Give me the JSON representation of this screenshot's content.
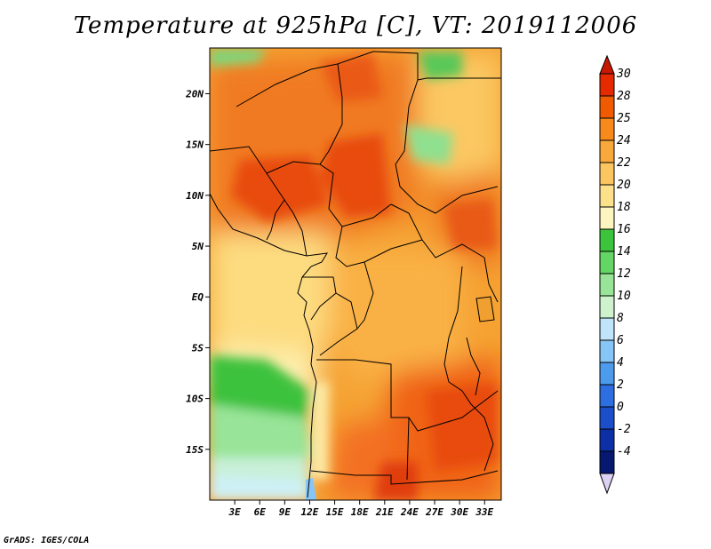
{
  "title": "Temperature at 925hPa [C], VT: 2019112006",
  "credit": "GrADS: IGES/COLA",
  "map": {
    "lon_range": [
      0,
      35
    ],
    "lat_range": [
      -20,
      24.5
    ],
    "lat_ticks": [
      {
        "value": 20,
        "label": "20N"
      },
      {
        "value": 15,
        "label": "15N"
      },
      {
        "value": 10,
        "label": "10N"
      },
      {
        "value": 5,
        "label": "5N"
      },
      {
        "value": 0,
        "label": "EQ"
      },
      {
        "value": -5,
        "label": "5S"
      },
      {
        "value": -10,
        "label": "10S"
      },
      {
        "value": -15,
        "label": "15S"
      }
    ],
    "lon_ticks": [
      {
        "value": 3,
        "label": "3E"
      },
      {
        "value": 6,
        "label": "6E"
      },
      {
        "value": 9,
        "label": "9E"
      },
      {
        "value": 12,
        "label": "12E"
      },
      {
        "value": 15,
        "label": "15E"
      },
      {
        "value": 18,
        "label": "18E"
      },
      {
        "value": 21,
        "label": "21E"
      },
      {
        "value": 24,
        "label": "24E"
      },
      {
        "value": 27,
        "label": "27E"
      },
      {
        "value": 30,
        "label": "30E"
      },
      {
        "value": 33,
        "label": "33E"
      }
    ]
  },
  "colorbar": {
    "labels": [
      "30",
      "28",
      "25",
      "24",
      "22",
      "20",
      "18",
      "16",
      "14",
      "12",
      "10",
      "8",
      "6",
      "4",
      "2",
      "0",
      "-2",
      "-4"
    ],
    "colors": [
      "#e62a00",
      "#f05a00",
      "#f88a1c",
      "#f9a93b",
      "#fbc660",
      "#fde08a",
      "#fdf5bf",
      "#3dc43d",
      "#64d664",
      "#98e498",
      "#cdf2cd",
      "#c0e4fa",
      "#86c5f5",
      "#4c9bec",
      "#2d6fe1",
      "#1b4fca",
      "#0c2fa6",
      "#061870"
    ],
    "top_arrow_color": "#c81800",
    "bottom_arrow_color": "#dcd2f4"
  }
}
